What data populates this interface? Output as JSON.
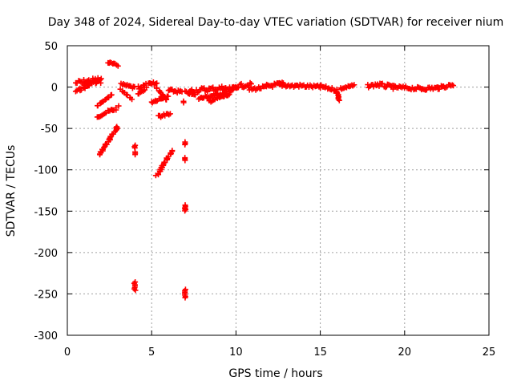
{
  "chart_data": {
    "type": "scatter",
    "title": "Day 348 of 2024, Sidereal Day-to-day VTEC variation (SDTVAR) for receiver nium",
    "xlabel": "GPS time / hours",
    "ylabel": "SDTVAR / TECUs",
    "xlim": [
      0,
      25
    ],
    "ylim": [
      -300,
      50
    ],
    "xticks": [
      0,
      5,
      10,
      15,
      20,
      25
    ],
    "xtick_labels": [
      "0",
      "5",
      "10",
      "15",
      "20",
      "25"
    ],
    "yticks": [
      -300,
      -250,
      -200,
      -150,
      -100,
      -50,
      0,
      50
    ],
    "ytick_labels": [
      "-300",
      "-250",
      "-200",
      "-150",
      "-100",
      "-50",
      "0",
      "50"
    ],
    "grid": true,
    "marker": "+",
    "marker_color": "#ff0000",
    "segments": [
      {
        "x0": 0.5,
        "y0": 5,
        "x1": 1.8,
        "y1": 9,
        "width": 6
      },
      {
        "x0": 0.5,
        "y0": -5,
        "x1": 1.3,
        "y1": 2,
        "width": 4
      },
      {
        "x0": 1.0,
        "y0": 3,
        "x1": 2.0,
        "y1": 7,
        "width": 5
      },
      {
        "x0": 1.7,
        "y0": 5,
        "x1": 2.0,
        "y1": 10,
        "width": 3
      },
      {
        "x0": 2.4,
        "y0": 30,
        "x1": 3.0,
        "y1": 26,
        "width": 3
      },
      {
        "x0": 1.8,
        "y0": -22,
        "x1": 2.6,
        "y1": -10,
        "width": 4
      },
      {
        "x0": 1.8,
        "y0": -35,
        "x1": 3.0,
        "y1": -25,
        "width": 5
      },
      {
        "x0": 1.9,
        "y0": -82,
        "x1": 3.0,
        "y1": -47,
        "width": 5
      },
      {
        "x0": 3.2,
        "y0": 3,
        "x1": 4.0,
        "y1": -1,
        "width": 4
      },
      {
        "x0": 3.2,
        "y0": -4,
        "x1": 3.8,
        "y1": -14,
        "width": 4
      },
      {
        "x0": 4.2,
        "y0": 0,
        "x1": 5.3,
        "y1": 4,
        "width": 6
      },
      {
        "x0": 4.2,
        "y0": -8,
        "x1": 4.6,
        "y1": -3,
        "width": 3
      },
      {
        "x0": 5.0,
        "y0": -18,
        "x1": 6.0,
        "y1": -10,
        "width": 4
      },
      {
        "x0": 5.3,
        "y0": -1,
        "x1": 5.9,
        "y1": -16,
        "width": 3
      },
      {
        "x0": 5.4,
        "y0": -35,
        "x1": 6.1,
        "y1": -33,
        "width": 4
      },
      {
        "x0": 5.3,
        "y0": -107,
        "x1": 6.2,
        "y1": -77,
        "width": 5
      },
      {
        "x0": 6.0,
        "y0": -4,
        "x1": 6.8,
        "y1": -6,
        "width": 4
      },
      {
        "x0": 7.0,
        "y0": -6,
        "x1": 7.6,
        "y1": -10,
        "width": 3
      },
      {
        "x0": 7.2,
        "y0": -5,
        "x1": 9.3,
        "y1": -1,
        "width": 6
      },
      {
        "x0": 7.8,
        "y0": -14,
        "x1": 9.8,
        "y1": -5,
        "width": 4
      },
      {
        "x0": 8.4,
        "y0": -17,
        "x1": 9.6,
        "y1": -9,
        "width": 4
      },
      {
        "x0": 9.3,
        "y0": -3,
        "x1": 10.0,
        "y1": -1,
        "width": 4
      },
      {
        "x0": 10.0,
        "y0": 1,
        "x1": 10.9,
        "y1": 3,
        "width": 5
      },
      {
        "x0": 10.8,
        "y0": -3,
        "x1": 11.8,
        "y1": 0,
        "width": 4
      },
      {
        "x0": 11.8,
        "y0": 1,
        "x1": 12.8,
        "y1": 4,
        "width": 5
      },
      {
        "x0": 12.5,
        "y0": 3,
        "x1": 13.5,
        "y1": 1,
        "width": 4
      },
      {
        "x0": 13.5,
        "y0": 2,
        "x1": 15.0,
        "y1": 0,
        "width": 4
      },
      {
        "x0": 15.0,
        "y0": 1,
        "x1": 16.0,
        "y1": -4,
        "width": 4
      },
      {
        "x0": 16.0,
        "y0": -6,
        "x1": 16.1,
        "y1": -16,
        "width": 2
      },
      {
        "x0": 16.2,
        "y0": -2,
        "x1": 17.0,
        "y1": 2,
        "width": 3
      },
      {
        "x0": 17.8,
        "y0": 1,
        "x1": 18.4,
        "y1": 3,
        "width": 4
      },
      {
        "x0": 18.4,
        "y0": 3,
        "x1": 19.3,
        "y1": 0,
        "width": 5
      },
      {
        "x0": 19.3,
        "y0": 0,
        "x1": 21.0,
        "y1": -2,
        "width": 4
      },
      {
        "x0": 21.0,
        "y0": -2,
        "x1": 22.0,
        "y1": -1,
        "width": 4
      },
      {
        "x0": 22.0,
        "y0": -1,
        "x1": 22.9,
        "y1": 3,
        "width": 4
      }
    ],
    "clusters": [
      {
        "x": 4.0,
        "y": -72,
        "n": 3
      },
      {
        "x": 4.0,
        "y": -80,
        "n": 3
      },
      {
        "x": 4.0,
        "y": -238,
        "n": 4
      },
      {
        "x": 4.0,
        "y": -244,
        "n": 3
      },
      {
        "x": 6.9,
        "y": -18,
        "n": 2
      },
      {
        "x": 7.0,
        "y": -68,
        "n": 3
      },
      {
        "x": 7.0,
        "y": -87,
        "n": 3
      },
      {
        "x": 7.0,
        "y": -145,
        "n": 4
      },
      {
        "x": 7.0,
        "y": -148,
        "n": 3
      },
      {
        "x": 7.0,
        "y": -247,
        "n": 4
      },
      {
        "x": 7.0,
        "y": -253,
        "n": 3
      }
    ]
  }
}
